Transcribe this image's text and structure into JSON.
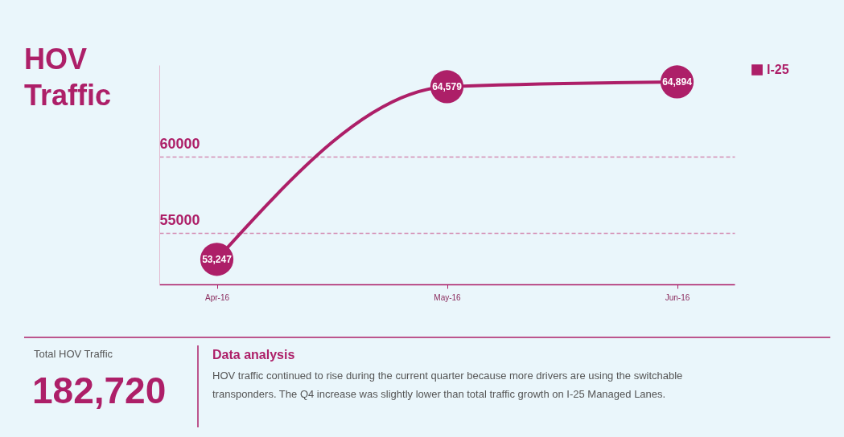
{
  "chart_data": {
    "type": "line",
    "title": "HOV Traffic",
    "categories": [
      "Apr-16",
      "May-16",
      "Jun-16"
    ],
    "series": [
      {
        "name": "I-25",
        "color": "#ad1f68",
        "values": [
          53247,
          64579,
          64894
        ],
        "value_labels": [
          "53,247",
          "64,579",
          "64,894"
        ]
      }
    ],
    "ylim": [
      51600,
      66000
    ],
    "yticks": [
      55000,
      60000
    ],
    "grid": "y",
    "legend": "top right",
    "marker": "circle",
    "line_style": "solid",
    "annotations": [
      "Total HOV Traffic",
      "182,720",
      "Data analysis",
      "HOV traffic continued to rise during the current quarter because more drivers are using the switchable transponders. The Q4 increase was slightly lower than total traffic growth on I-25 Managed Lanes."
    ]
  }
}
